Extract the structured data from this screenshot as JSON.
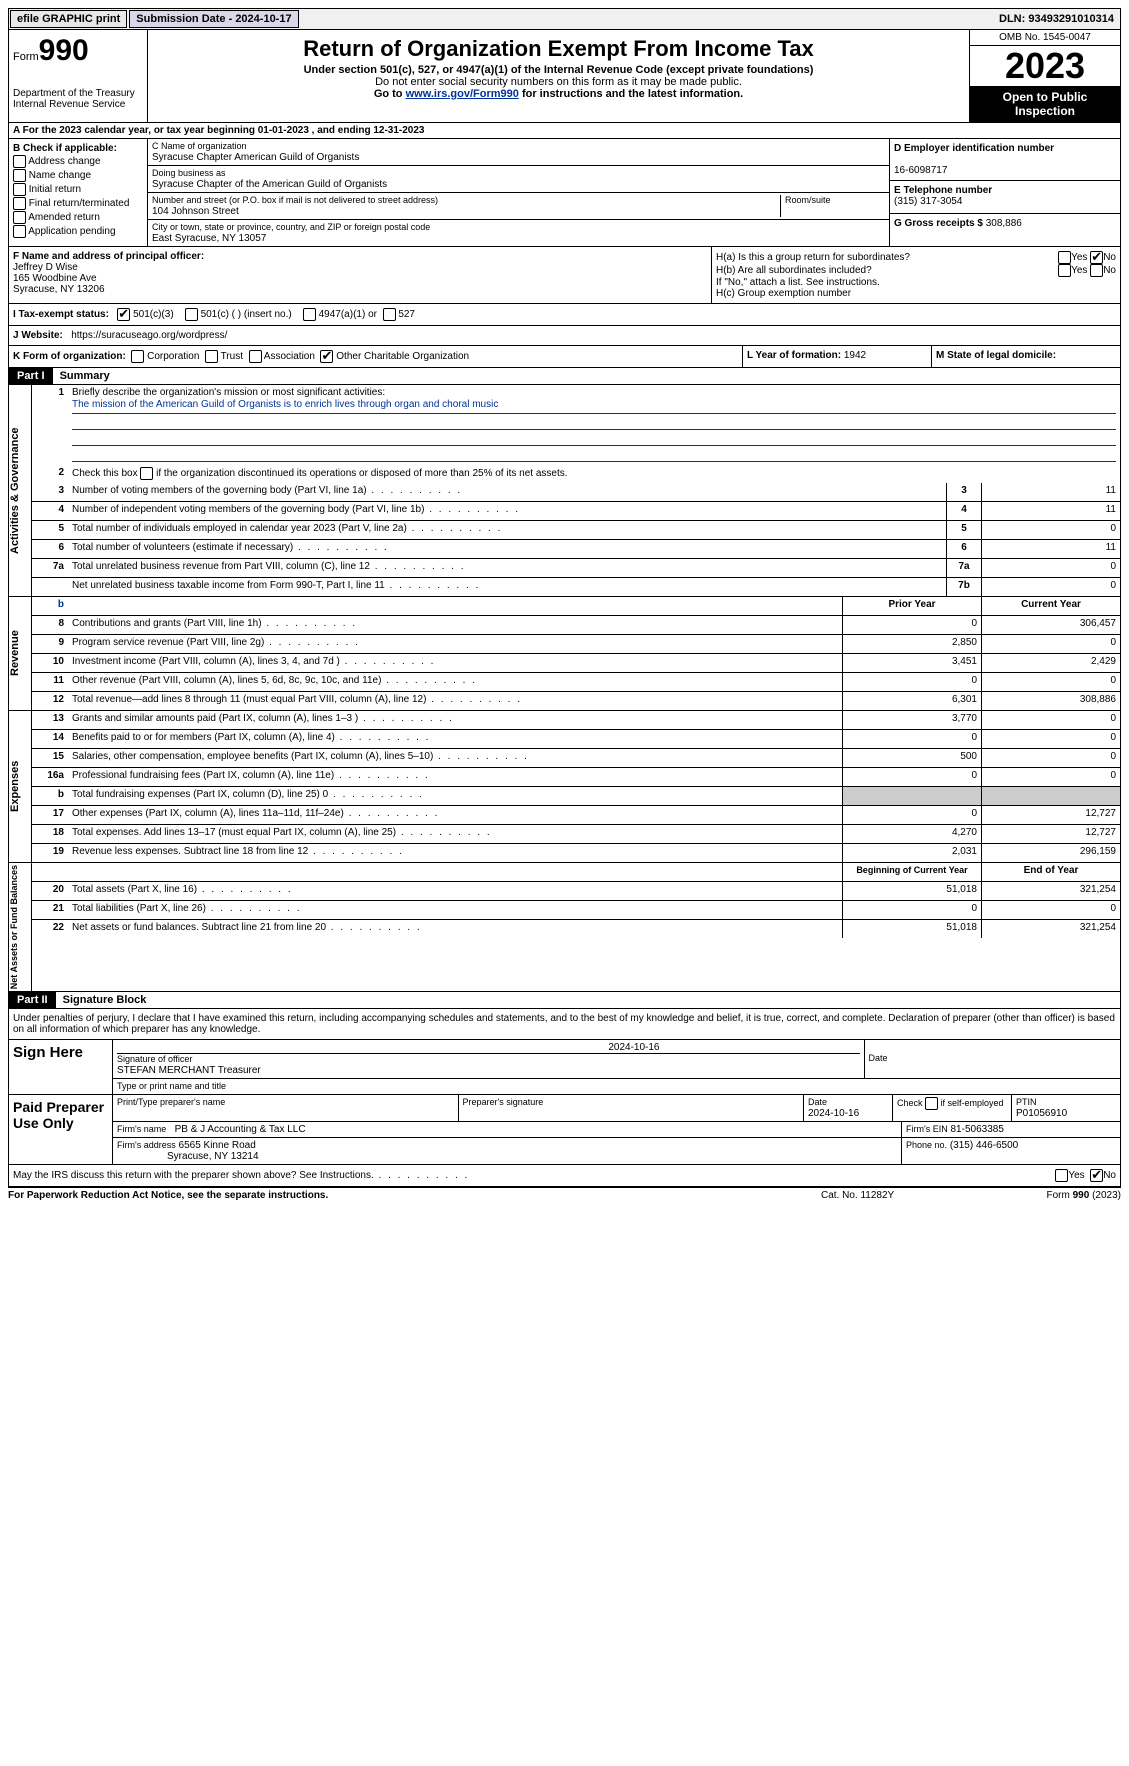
{
  "top": {
    "efile": "efile GRAPHIC print",
    "submission": "Submission Date - 2024-10-17",
    "dln": "DLN: 93493291010314"
  },
  "header": {
    "form_label": "Form",
    "form_number": "990",
    "dept": "Department of the Treasury",
    "irs": "Internal Revenue Service",
    "title": "Return of Organization Exempt From Income Tax",
    "subtitle": "Under section 501(c), 527, or 4947(a)(1) of the Internal Revenue Code (except private foundations)",
    "ssn_note": "Do not enter social security numbers on this form as it may be made public.",
    "goto": "Go to ",
    "goto_link": "www.irs.gov/Form990",
    "goto_suffix": " for instructions and the latest information.",
    "omb": "OMB No. 1545-0047",
    "year": "2023",
    "open": "Open to Public Inspection"
  },
  "line_a": "For the 2023 calendar year, or tax year beginning 01-01-2023    , and ending 12-31-2023",
  "box_b": {
    "title": "B Check if applicable:",
    "opts": [
      "Address change",
      "Name change",
      "Initial return",
      "Final return/terminated",
      "Amended return",
      "Application pending"
    ]
  },
  "box_c": {
    "name_label": "C Name of organization",
    "name": "Syracuse Chapter American Guild of Organists",
    "dba_label": "Doing business as",
    "dba": "Syracuse Chapter of the American Guild of Organists",
    "street_label": "Number and street (or P.O. box if mail is not delivered to street address)",
    "room_label": "Room/suite",
    "street": "104 Johnson Street",
    "city_label": "City or town, state or province, country, and ZIP or foreign postal code",
    "city": "East Syracuse, NY  13057"
  },
  "box_d": {
    "label": "D Employer identification number",
    "value": "16-6098717"
  },
  "box_e": {
    "label": "E Telephone number",
    "value": "(315) 317-3054"
  },
  "box_g": {
    "label": "G Gross receipts $",
    "value": "308,886"
  },
  "box_f": {
    "label": "F  Name and address of principal officer:",
    "name": "Jeffrey D Wise",
    "addr1": "165 Woodbine Ave",
    "addr2": "Syracuse, NY  13206"
  },
  "box_h": {
    "ha": "H(a)  Is this a group return for subordinates?",
    "hb": "H(b)  Are all subordinates included?",
    "hb_note": "If \"No,\" attach a list. See instructions.",
    "hc": "H(c)  Group exemption number",
    "yes": "Yes",
    "no": "No"
  },
  "box_i": {
    "label": "I  Tax-exempt status:",
    "o1": "501(c)(3)",
    "o2": "501(c) (  ) (insert no.)",
    "o3": "4947(a)(1) or",
    "o4": "527"
  },
  "box_j": {
    "label": "J  Website:",
    "value": "https://suracuseago.org/wordpress/"
  },
  "box_k": {
    "label": "K Form of organization:",
    "o1": "Corporation",
    "o2": "Trust",
    "o3": "Association",
    "o4": "Other Charitable Organization"
  },
  "box_l": {
    "label": "L Year of formation:",
    "value": "1942"
  },
  "box_m": {
    "label": "M State of legal domicile:",
    "value": ""
  },
  "part1": {
    "header": "Part I",
    "title": "Summary",
    "q1": "Briefly describe the organization's mission or most significant activities:",
    "mission": "The mission of the American Guild of Organists is to enrich lives through organ and choral music",
    "q2": "Check this box      if the organization discontinued its operations or disposed of more than 25% of its net assets.",
    "sections": {
      "gov": "Activities & Governance",
      "rev": "Revenue",
      "exp": "Expenses",
      "net": "Net Assets or Fund Balances"
    },
    "rows_gov": [
      {
        "n": "3",
        "d": "Number of voting members of the governing body (Part VI, line 1a)",
        "box": "3",
        "v": "11"
      },
      {
        "n": "4",
        "d": "Number of independent voting members of the governing body (Part VI, line 1b)",
        "box": "4",
        "v": "11"
      },
      {
        "n": "5",
        "d": "Total number of individuals employed in calendar year 2023 (Part V, line 2a)",
        "box": "5",
        "v": "0"
      },
      {
        "n": "6",
        "d": "Total number of volunteers (estimate if necessary)",
        "box": "6",
        "v": "11"
      },
      {
        "n": "7a",
        "d": "Total unrelated business revenue from Part VIII, column (C), line 12",
        "box": "7a",
        "v": "0"
      },
      {
        "n": "",
        "d": "Net unrelated business taxable income from Form 990-T, Part I, line 11",
        "box": "7b",
        "v": "0"
      }
    ],
    "col_headers": {
      "prior": "Prior Year",
      "current": "Current Year",
      "begin": "Beginning of Current Year",
      "end": "End of Year"
    },
    "rows_rev": [
      {
        "n": "8",
        "d": "Contributions and grants (Part VIII, line 1h)",
        "p": "0",
        "c": "306,457"
      },
      {
        "n": "9",
        "d": "Program service revenue (Part VIII, line 2g)",
        "p": "2,850",
        "c": "0"
      },
      {
        "n": "10",
        "d": "Investment income (Part VIII, column (A), lines 3, 4, and 7d )",
        "p": "3,451",
        "c": "2,429"
      },
      {
        "n": "11",
        "d": "Other revenue (Part VIII, column (A), lines 5, 6d, 8c, 9c, 10c, and 11e)",
        "p": "0",
        "c": "0"
      },
      {
        "n": "12",
        "d": "Total revenue—add lines 8 through 11 (must equal Part VIII, column (A), line 12)",
        "p": "6,301",
        "c": "308,886"
      }
    ],
    "rows_exp": [
      {
        "n": "13",
        "d": "Grants and similar amounts paid (Part IX, column (A), lines 1–3 )",
        "p": "3,770",
        "c": "0"
      },
      {
        "n": "14",
        "d": "Benefits paid to or for members (Part IX, column (A), line 4)",
        "p": "0",
        "c": "0"
      },
      {
        "n": "15",
        "d": "Salaries, other compensation, employee benefits (Part IX, column (A), lines 5–10)",
        "p": "500",
        "c": "0"
      },
      {
        "n": "16a",
        "d": "Professional fundraising fees (Part IX, column (A), line 11e)",
        "p": "0",
        "c": "0"
      },
      {
        "n": "b",
        "d": "Total fundraising expenses (Part IX, column (D), line 25) 0",
        "p": "",
        "c": "",
        "gray": true
      },
      {
        "n": "17",
        "d": "Other expenses (Part IX, column (A), lines 11a–11d, 11f–24e)",
        "p": "0",
        "c": "12,727"
      },
      {
        "n": "18",
        "d": "Total expenses. Add lines 13–17 (must equal Part IX, column (A), line 25)",
        "p": "4,270",
        "c": "12,727"
      },
      {
        "n": "19",
        "d": "Revenue less expenses. Subtract line 18 from line 12",
        "p": "2,031",
        "c": "296,159"
      }
    ],
    "rows_net": [
      {
        "n": "20",
        "d": "Total assets (Part X, line 16)",
        "p": "51,018",
        "c": "321,254"
      },
      {
        "n": "21",
        "d": "Total liabilities (Part X, line 26)",
        "p": "0",
        "c": "0"
      },
      {
        "n": "22",
        "d": "Net assets or fund balances. Subtract line 21 from line 20",
        "p": "51,018",
        "c": "321,254"
      }
    ]
  },
  "part2": {
    "header": "Part II",
    "title": "Signature Block",
    "decl": "Under penalties of perjury, I declare that I have examined this return, including accompanying schedules and statements, and to the best of my knowledge and belief, it is true, correct, and complete. Declaration of preparer (other than officer) is based on all information of which preparer has any knowledge.",
    "sign_here": "Sign Here",
    "sig_officer_label": "Signature of officer",
    "sig_date": "2024-10-16",
    "officer_name": "STEFAN MERCHANT Treasurer",
    "type_label": "Type or print name and title",
    "date_label": "Date",
    "paid_label": "Paid Preparer Use Only",
    "prep_name_label": "Print/Type preparer's name",
    "prep_sig_label": "Preparer's signature",
    "prep_date": "2024-10-16",
    "check_self": "Check        if self-employed",
    "ptin_label": "PTIN",
    "ptin": "P01056910",
    "firm_name_label": "Firm's name",
    "firm_name": "PB & J Accounting & Tax LLC",
    "firm_ein_label": "Firm's EIN",
    "firm_ein": "81-5063385",
    "firm_addr_label": "Firm's address",
    "firm_addr1": "6565 Kinne Road",
    "firm_addr2": "Syracuse, NY  13214",
    "phone_label": "Phone no.",
    "phone": "(315) 446-6500",
    "discuss": "May the IRS discuss this return with the preparer shown above? See Instructions.",
    "yes": "Yes",
    "no": "No"
  },
  "footer": {
    "left": "For Paperwork Reduction Act Notice, see the separate instructions.",
    "center": "Cat. No. 11282Y",
    "right": "Form 990 (2023)"
  }
}
